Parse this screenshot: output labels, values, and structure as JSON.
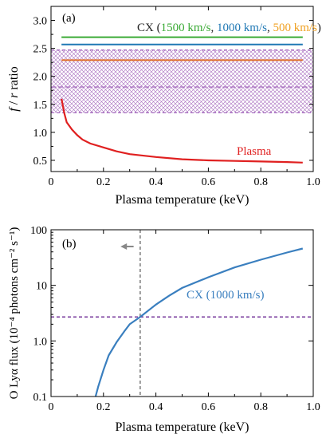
{
  "chart_data": [
    {
      "type": "line",
      "panel_label": "(a)",
      "xlabel": "Plasma temperature (keV)",
      "ylabel_parts": [
        "f",
        " / ",
        "r",
        " ratio"
      ],
      "xlim": [
        0,
        1.0
      ],
      "ylim": [
        0.3,
        3.25
      ],
      "xticks": [
        0,
        0.2,
        0.4,
        0.6,
        0.8,
        1.0
      ],
      "xtick_labels": [
        "0",
        "0.2",
        "0.4",
        "0.6",
        "0.8",
        "1.0"
      ],
      "yticks": [
        0.5,
        1.0,
        1.5,
        2.0,
        2.5,
        3.0
      ],
      "ytick_labels": [
        "0.5",
        "1.0",
        "1.5",
        "2.0",
        "2.5",
        "3.0"
      ],
      "legend_parts": [
        {
          "text": "CX (",
          "color": "#222222"
        },
        {
          "text": "1500 km/s",
          "color": "#3aaa35"
        },
        {
          "text": ", ",
          "color": "#222222"
        },
        {
          "text": "1000 km/s",
          "color": "#1f78b4"
        },
        {
          "text": ", ",
          "color": "#222222"
        },
        {
          "text": "500 km/s",
          "color": "#f0a020"
        },
        {
          "text": ")",
          "color": "#222222"
        }
      ],
      "hlines": [
        {
          "name": "1500 km/s",
          "y": 2.7,
          "x": [
            0.04,
            0.96
          ],
          "color": "#3aaa35"
        },
        {
          "name": "1000 km/s",
          "y": 2.57,
          "x": [
            0.04,
            0.96
          ],
          "color": "#1f78b4"
        },
        {
          "name": "500 km/s",
          "y": 2.29,
          "x": [
            0.04,
            0.96
          ],
          "color": "#e0702a"
        }
      ],
      "band": {
        "y_low": 1.35,
        "y_high": 2.47,
        "y_center": 1.81,
        "color": "#9b59b6"
      },
      "series": [
        {
          "name": "Plasma",
          "color": "#e02020",
          "x": [
            0.04,
            0.05,
            0.06,
            0.08,
            0.1,
            0.12,
            0.15,
            0.2,
            0.25,
            0.3,
            0.4,
            0.5,
            0.6,
            0.7,
            0.8,
            0.9,
            0.96
          ],
          "y": [
            1.6,
            1.35,
            1.18,
            1.05,
            0.95,
            0.87,
            0.8,
            0.73,
            0.66,
            0.61,
            0.56,
            0.52,
            0.5,
            0.49,
            0.48,
            0.47,
            0.46
          ]
        }
      ],
      "series_label": {
        "text": "Plasma",
        "color": "#e02020"
      }
    },
    {
      "type": "line",
      "panel_label": "(b)",
      "xlabel": "Plasma temperature (keV)",
      "ylabel": "O Lyα flux (10⁻⁴ photons cm⁻² s⁻¹)",
      "yscale": "log",
      "xlim": [
        0,
        1.0
      ],
      "ylim": [
        0.1,
        100
      ],
      "xticks": [
        0,
        0.2,
        0.4,
        0.6,
        0.8,
        1.0
      ],
      "xtick_labels": [
        "0",
        "0.2",
        "0.4",
        "0.6",
        "0.8",
        "1.0"
      ],
      "yticks": [
        0.1,
        1.0,
        10,
        100
      ],
      "ytick_labels": [
        "0.1",
        "1.0",
        "10",
        "100"
      ],
      "hline": {
        "y": 2.7,
        "color": "#7b3f9e"
      },
      "vline": {
        "x": 0.34,
        "color": "#999999"
      },
      "arrow": {
        "x_from": 0.315,
        "x_to": 0.265,
        "y": 50,
        "color": "#888888"
      },
      "series": [
        {
          "name": "CX (1000 km/s)",
          "color": "#3a7fbf",
          "x": [
            0.17,
            0.18,
            0.2,
            0.22,
            0.25,
            0.28,
            0.3,
            0.34,
            0.4,
            0.45,
            0.5,
            0.6,
            0.7,
            0.8,
            0.9,
            0.96
          ],
          "y": [
            0.1,
            0.15,
            0.3,
            0.55,
            0.95,
            1.5,
            2.0,
            2.7,
            4.5,
            6.5,
            9.0,
            14,
            21,
            29,
            39,
            46
          ]
        }
      ],
      "series_label": {
        "text": "CX (1000 km/s)",
        "color": "#3a7fbf"
      }
    }
  ]
}
